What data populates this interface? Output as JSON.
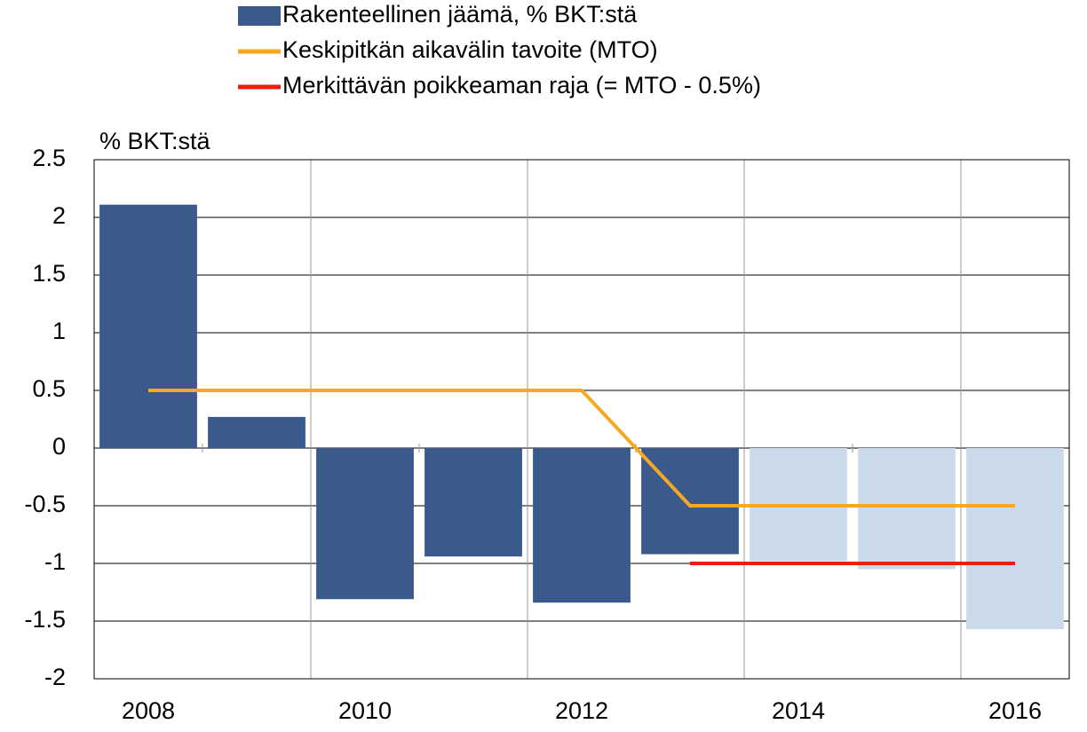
{
  "chart_data": {
    "type": "bar",
    "y_axis_label": "% BKT:stä",
    "categories": [
      "2008",
      null,
      "2010",
      null,
      "2012",
      null,
      "2014",
      null,
      "2016"
    ],
    "series": [
      {
        "name": "Rakenteellinen jäämä, % BKT:stä",
        "type": "bar",
        "colors": [
          "#3a5a8c",
          "#3a5a8c",
          "#3a5a8c",
          "#3a5a8c",
          "#3a5a8c",
          "#3a5a8c",
          "#cbdaea",
          "#cbdaea",
          "#cbdaea"
        ],
        "color": "#3a5a8c",
        "values": [
          2.11,
          0.27,
          -1.31,
          -0.94,
          -1.34,
          -0.92,
          -0.98,
          -1.05,
          -1.57
        ]
      },
      {
        "name": "Keskipitkän aikavälin tavoite (MTO)",
        "type": "line",
        "color": "#f7a823",
        "values": [
          0.5,
          0.5,
          0.5,
          0.5,
          0.5,
          -0.5,
          -0.5,
          -0.5,
          -0.5
        ]
      },
      {
        "name": "Merkittävän poikkeaman raja (= MTO - 0.5%)",
        "type": "line",
        "color": "#f21c0c",
        "values": [
          null,
          null,
          null,
          null,
          null,
          -1,
          -1,
          -1,
          -1
        ]
      }
    ],
    "ylim": [
      -2,
      2.5
    ],
    "yticks": [
      2.5,
      2,
      1.5,
      1,
      0.5,
      0,
      -0.5,
      -1,
      -1.5,
      -2
    ],
    "grid": true
  }
}
